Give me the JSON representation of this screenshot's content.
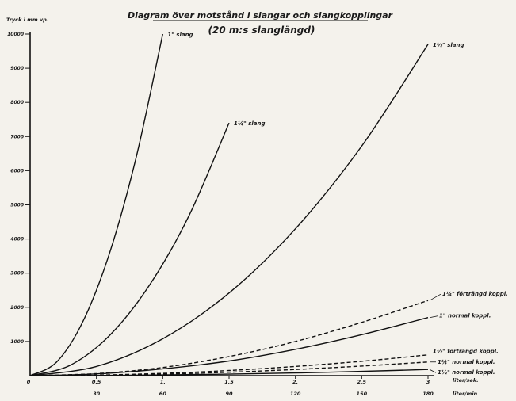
{
  "chart_data": {
    "type": "line",
    "title": "Diagram över motstånd i slangar och slangkopplingar",
    "subtitle": "(20 m:s slanglängd)",
    "ylabel": "Tryck i mm vp.",
    "xlabel_primary": "liter/sek.",
    "xlabel_secondary": "liter/min",
    "xlim": [
      0,
      3
    ],
    "ylim": [
      0,
      10000
    ],
    "y_ticks": [
      0,
      1000,
      2000,
      3000,
      4000,
      5000,
      6000,
      7000,
      8000,
      9000,
      10000
    ],
    "y_tick_labels": [
      "0",
      "1000",
      "2000",
      "3000",
      "4000",
      "5000",
      "6000",
      "7000",
      "8000",
      "9000",
      "10000"
    ],
    "x_ticks": [
      0.5,
      1,
      1.5,
      2,
      2.5,
      3
    ],
    "x_tick_labels": [
      "0,5",
      "1,",
      "1,5",
      "2,",
      "2,5",
      "3"
    ],
    "x2_ticks": [
      0.5,
      1,
      1.5,
      2,
      2.5,
      3
    ],
    "x2_tick_labels": [
      "30",
      "60",
      "90",
      "120",
      "150",
      "180"
    ],
    "origin_label": "0",
    "series": [
      {
        "name": "1\" slang",
        "style": "solid",
        "x": [
          0,
          0.2,
          0.4,
          0.6,
          0.8,
          1.0
        ],
        "y": [
          0,
          400,
          1600,
          3600,
          6400,
          10000
        ]
      },
      {
        "name": "1¼\" slang",
        "style": "solid",
        "x": [
          0,
          0.3,
          0.6,
          0.9,
          1.2,
          1.5
        ],
        "y": [
          0,
          300,
          1180,
          2650,
          4700,
          7400
        ]
      },
      {
        "name": "1½\" slang",
        "style": "solid",
        "x": [
          0,
          0.5,
          1.0,
          1.5,
          2.0,
          2.5,
          3.0
        ],
        "y": [
          0,
          270,
          1080,
          2420,
          4300,
          6720,
          9700
        ]
      },
      {
        "name": "1¼\" förträngd koppl.",
        "style": "dashed",
        "x": [
          0,
          0.5,
          1.0,
          1.5,
          2.0,
          2.5,
          3.0
        ],
        "y": [
          0,
          60,
          240,
          560,
          1000,
          1560,
          2200
        ]
      },
      {
        "name": "1\" normal koppl.",
        "style": "solid",
        "x": [
          0,
          0.5,
          1.0,
          1.5,
          2.0,
          2.5,
          3.0
        ],
        "y": [
          0,
          50,
          200,
          430,
          770,
          1200,
          1700
        ]
      },
      {
        "name": "1½\" förträngd koppl.",
        "style": "dashed",
        "x": [
          0,
          0.5,
          1.0,
          1.5,
          2.0,
          2.5,
          3.0
        ],
        "y": [
          0,
          17,
          68,
          150,
          270,
          420,
          610
        ]
      },
      {
        "name": "1¼\" normal koppl.",
        "style": "dashed",
        "x": [
          0,
          0.5,
          1.0,
          1.5,
          2.0,
          2.5,
          3.0
        ],
        "y": [
          0,
          11,
          45,
          100,
          180,
          280,
          400
        ]
      },
      {
        "name": "1½\" normal koppl.",
        "style": "solid",
        "x": [
          0,
          0.5,
          1.0,
          1.5,
          2.0,
          2.5,
          3.0
        ],
        "y": [
          0,
          5,
          20,
          45,
          80,
          125,
          180
        ]
      }
    ],
    "grid": false,
    "legend": "none"
  }
}
